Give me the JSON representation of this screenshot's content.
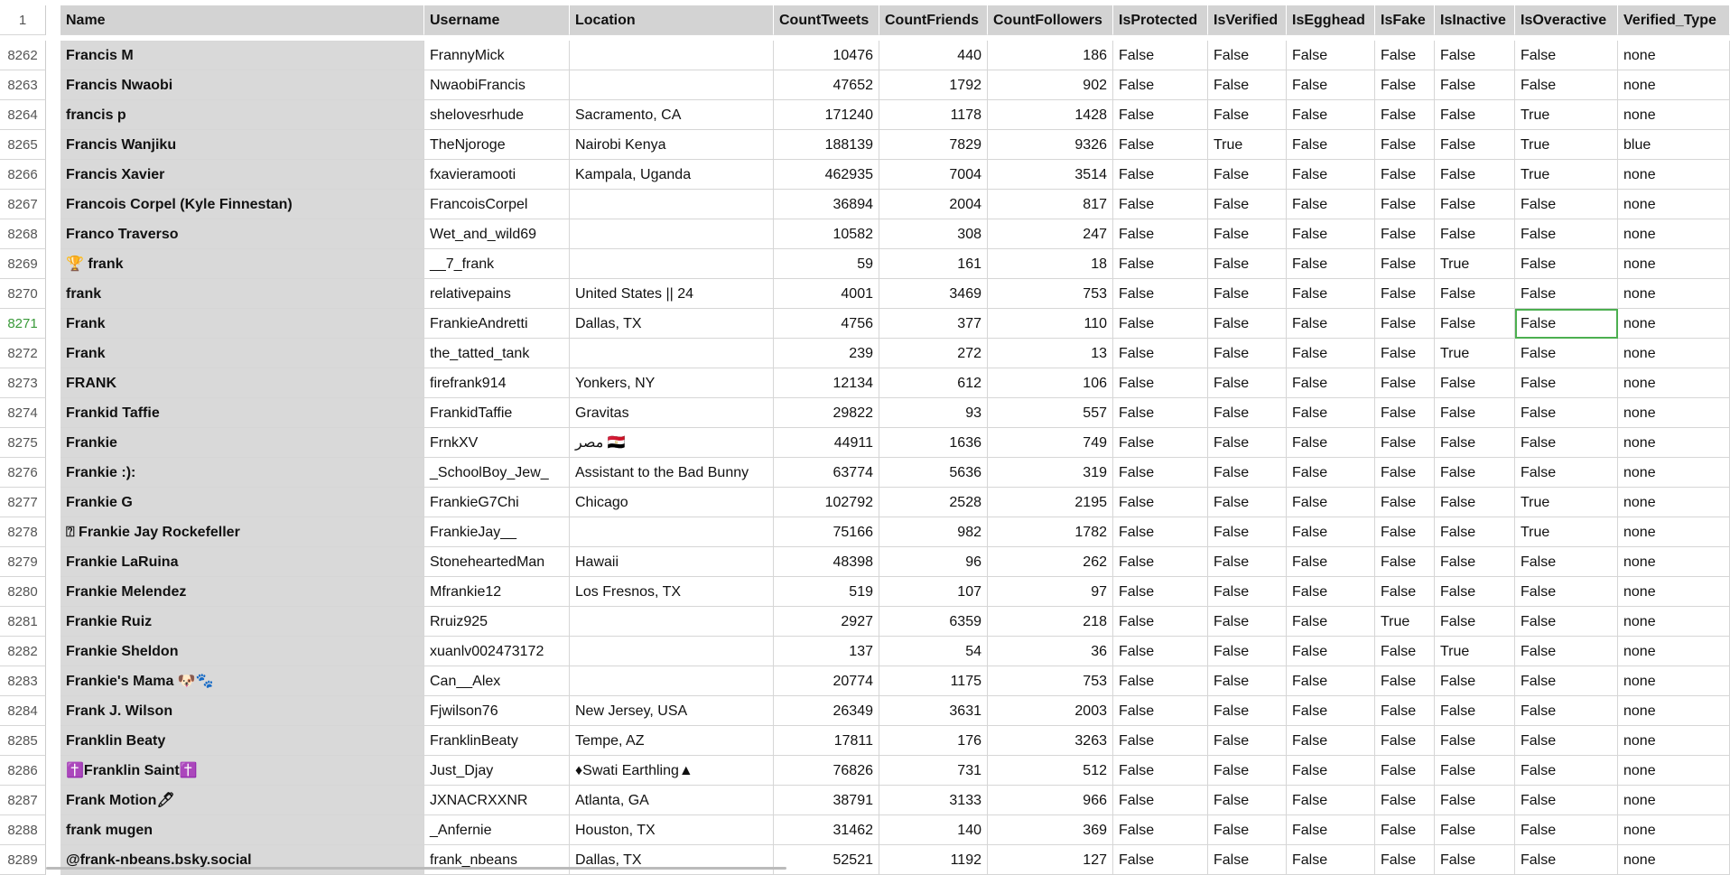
{
  "header": {
    "row_label": "1",
    "columns": [
      "Name",
      "Username",
      "Location",
      "CountTweets",
      "CountFriends",
      "CountFollowers",
      "IsProtected",
      "IsVerified",
      "IsEgghead",
      "IsFake",
      "IsInactive",
      "IsOveractive",
      "Verified_Type"
    ]
  },
  "rows": [
    [
      "8262",
      "Francis M",
      "FrannyMick",
      "",
      "10476",
      "440",
      "186",
      "False",
      "False",
      "False",
      "False",
      "False",
      "False",
      "none"
    ],
    [
      "8263",
      "Francis Nwaobi",
      "NwaobiFrancis",
      "",
      "47652",
      "1792",
      "902",
      "False",
      "False",
      "False",
      "False",
      "False",
      "False",
      "none"
    ],
    [
      "8264",
      "francis p",
      "shelovesrhude",
      "Sacramento, CA",
      "171240",
      "1178",
      "1428",
      "False",
      "False",
      "False",
      "False",
      "False",
      "True",
      "none"
    ],
    [
      "8265",
      "Francis Wanjiku",
      "TheNjoroge",
      "Nairobi Kenya",
      "188139",
      "7829",
      "9326",
      "False",
      "True",
      "False",
      "False",
      "False",
      "True",
      "blue"
    ],
    [
      "8266",
      "Francis Xavier",
      "fxavieramooti",
      "Kampala, Uganda",
      "462935",
      "7004",
      "3514",
      "False",
      "False",
      "False",
      "False",
      "False",
      "True",
      "none"
    ],
    [
      "8267",
      "Francois Corpel (Kyle Finnestan)",
      "FrancoisCorpel",
      "",
      "36894",
      "2004",
      "817",
      "False",
      "False",
      "False",
      "False",
      "False",
      "False",
      "none"
    ],
    [
      "8268",
      "Franco Traverso",
      "Wet_and_wild69",
      "",
      "10582",
      "308",
      "247",
      "False",
      "False",
      "False",
      "False",
      "False",
      "False",
      "none"
    ],
    [
      "8269",
      "🏆 frank",
      "__7_frank",
      "",
      "59",
      "161",
      "18",
      "False",
      "False",
      "False",
      "False",
      "True",
      "False",
      "none"
    ],
    [
      "8270",
      "frank",
      "relativepains",
      "United States || 24",
      "4001",
      "3469",
      "753",
      "False",
      "False",
      "False",
      "False",
      "False",
      "False",
      "none"
    ],
    [
      "8271",
      "Frank",
      "FrankieAndretti",
      "Dallas, TX",
      "4756",
      "377",
      "110",
      "False",
      "False",
      "False",
      "False",
      "False",
      "False",
      "none"
    ],
    [
      "8272",
      "Frank",
      "the_tatted_tank",
      "",
      "239",
      "272",
      "13",
      "False",
      "False",
      "False",
      "False",
      "True",
      "False",
      "none"
    ],
    [
      "8273",
      "FRANK",
      "firefrank914",
      "Yonkers, NY",
      "12134",
      "612",
      "106",
      "False",
      "False",
      "False",
      "False",
      "False",
      "False",
      "none"
    ],
    [
      "8274",
      "Frankid Taffie",
      "FrankidTaffie",
      "Gravitas",
      "29822",
      "93",
      "557",
      "False",
      "False",
      "False",
      "False",
      "False",
      "False",
      "none"
    ],
    [
      "8275",
      "Frankie",
      "FrnkXV",
      "مصر 🇪🇬",
      "44911",
      "1636",
      "749",
      "False",
      "False",
      "False",
      "False",
      "False",
      "False",
      "none"
    ],
    [
      "8276",
      "Frankie :):",
      "_SchoolBoy_Jew_",
      "Assistant to the Bad Bunny",
      "63774",
      "5636",
      "319",
      "False",
      "False",
      "False",
      "False",
      "False",
      "False",
      "none"
    ],
    [
      "8277",
      "Frankie G",
      "FrankieG7Chi",
      "Chicago",
      "102792",
      "2528",
      "2195",
      "False",
      "False",
      "False",
      "False",
      "False",
      "True",
      "none"
    ],
    [
      "8278",
      "⍰ Frankie Jay Rockefeller",
      "FrankieJay__",
      "",
      "75166",
      "982",
      "1782",
      "False",
      "False",
      "False",
      "False",
      "False",
      "True",
      "none"
    ],
    [
      "8279",
      "Frankie LaRuina",
      "StoneheartedMan",
      "Hawaii",
      "48398",
      "96",
      "262",
      "False",
      "False",
      "False",
      "False",
      "False",
      "False",
      "none"
    ],
    [
      "8280",
      "Frankie Melendez",
      "Mfrankie12",
      "Los Fresnos, TX",
      "519",
      "107",
      "97",
      "False",
      "False",
      "False",
      "False",
      "False",
      "False",
      "none"
    ],
    [
      "8281",
      "Frankie Ruiz",
      "Rruiz925",
      "",
      "2927",
      "6359",
      "218",
      "False",
      "False",
      "False",
      "True",
      "False",
      "False",
      "none"
    ],
    [
      "8282",
      "Frankie Sheldon",
      "xuanlv002473172",
      "",
      "137",
      "54",
      "36",
      "False",
      "False",
      "False",
      "False",
      "True",
      "False",
      "none"
    ],
    [
      "8283",
      "Frankie's Mama 🐶🐾",
      "Can__Alex",
      "",
      "20774",
      "1175",
      "753",
      "False",
      "False",
      "False",
      "False",
      "False",
      "False",
      "none"
    ],
    [
      "8284",
      "Frank J. Wilson",
      "Fjwilson76",
      "New Jersey, USA",
      "26349",
      "3631",
      "2003",
      "False",
      "False",
      "False",
      "False",
      "False",
      "False",
      "none"
    ],
    [
      "8285",
      "Franklin Beaty",
      "FranklinBeaty",
      "Tempe, AZ",
      "17811",
      "176",
      "3263",
      "False",
      "False",
      "False",
      "False",
      "False",
      "False",
      "none"
    ],
    [
      "8286",
      "✝️Franklin Saint✝️",
      "Just_Djay",
      "♦Swati Earthling▲",
      "76826",
      "731",
      "512",
      "False",
      "False",
      "False",
      "False",
      "False",
      "False",
      "none"
    ],
    [
      "8287",
      "Frank Motion🖊",
      "JXNACRXXNR",
      "Atlanta, GA",
      "38791",
      "3133",
      "966",
      "False",
      "False",
      "False",
      "False",
      "False",
      "False",
      "none"
    ],
    [
      "8288",
      "frank mugen",
      "_Anfernie",
      "Houston, TX",
      "31462",
      "140",
      "369",
      "False",
      "False",
      "False",
      "False",
      "False",
      "False",
      "none"
    ],
    [
      "8289",
      "@frank-nbeans.bsky.social",
      "frank_nbeans",
      "Dallas, TX",
      "52521",
      "1192",
      "127",
      "False",
      "False",
      "False",
      "False",
      "False",
      "False",
      "none"
    ]
  ]
}
